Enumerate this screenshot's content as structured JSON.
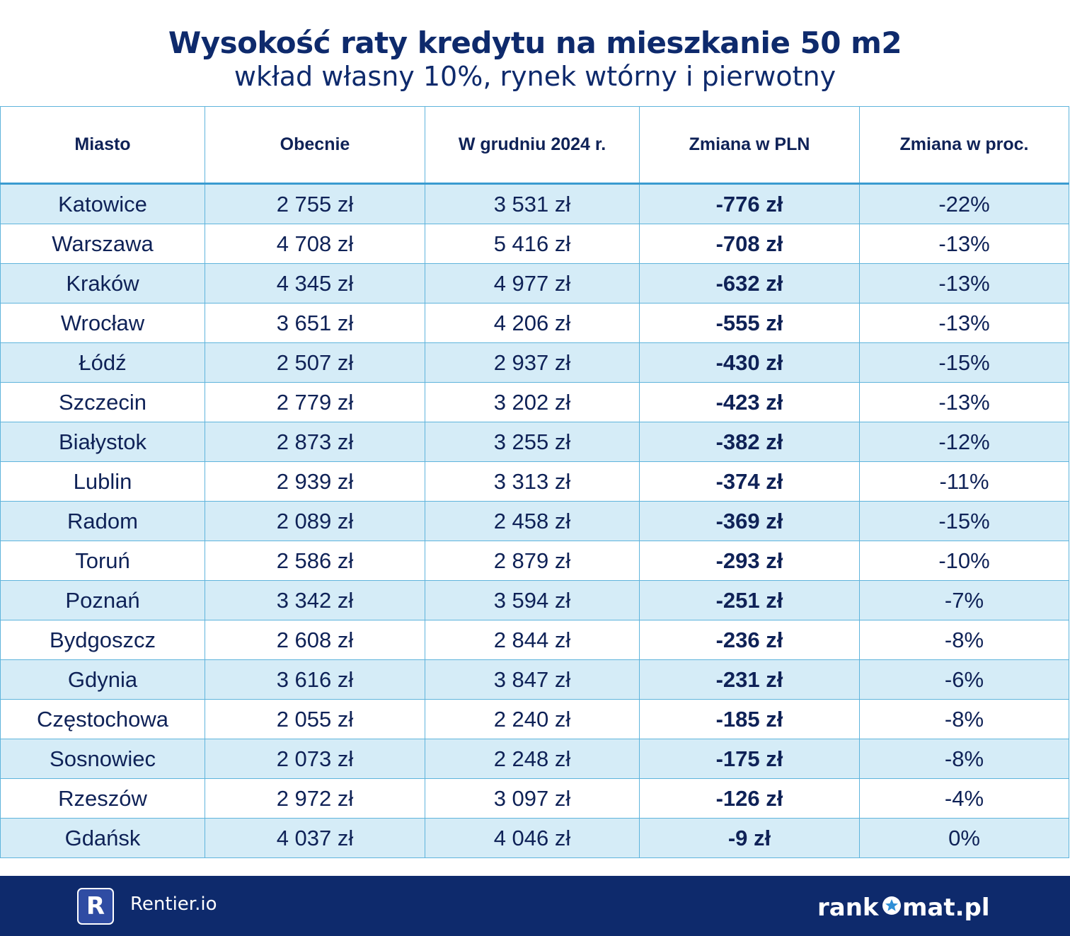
{
  "header": {
    "title": "Wysokość raty kredytu na mieszkanie 50 m2",
    "subtitle": "wkład własny 10%, rynek wtórny i pierwotny"
  },
  "chart_data": {
    "type": "table",
    "title": "Wysokość raty kredytu na mieszkanie 50 m2",
    "subtitle": "wkład własny 10%, rynek wtórny i pierwotny",
    "columns": [
      "Miasto",
      "Obecnie",
      "W grudniu 2024 r.",
      "Zmiana w PLN",
      "Zmiana w proc."
    ],
    "rows": [
      [
        "Katowice",
        "2 755 zł",
        "3 531 zł",
        "-776 zł",
        "-22%"
      ],
      [
        "Warszawa",
        "4 708 zł",
        "5 416 zł",
        "-708 zł",
        "-13%"
      ],
      [
        "Kraków",
        "4 345 zł",
        "4 977 zł",
        "-632 zł",
        "-13%"
      ],
      [
        "Wrocław",
        "3 651 zł",
        "4 206 zł",
        "-555 zł",
        "-13%"
      ],
      [
        "Łódź",
        "2 507 zł",
        "2 937 zł",
        "-430 zł",
        "-15%"
      ],
      [
        "Szczecin",
        "2 779 zł",
        "3 202 zł",
        "-423 zł",
        "-13%"
      ],
      [
        "Białystok",
        "2 873 zł",
        "3 255 zł",
        "-382 zł",
        "-12%"
      ],
      [
        "Lublin",
        "2 939 zł",
        "3 313 zł",
        "-374 zł",
        "-11%"
      ],
      [
        "Radom",
        "2 089 zł",
        "2 458 zł",
        "-369 zł",
        "-15%"
      ],
      [
        "Toruń",
        "2 586 zł",
        "2 879 zł",
        "-293 zł",
        "-10%"
      ],
      [
        "Poznań",
        "3 342 zł",
        "3 594 zł",
        "-251 zł",
        "-7%"
      ],
      [
        "Bydgoszcz",
        "2 608 zł",
        "2 844 zł",
        "-236 zł",
        "-8%"
      ],
      [
        "Gdynia",
        "3 616 zł",
        "3 847 zł",
        "-231 zł",
        "-6%"
      ],
      [
        "Częstochowa",
        "2 055 zł",
        "2 240 zł",
        "-185 zł",
        "-8%"
      ],
      [
        "Sosnowiec",
        "2 073 zł",
        "2 248 zł",
        "-175 zł",
        "-8%"
      ],
      [
        "Rzeszów",
        "2 972 zł",
        "3 097 zł",
        "-126 zł",
        "-4%"
      ],
      [
        "Gdańsk",
        "4 037 zł",
        "4 046 zł",
        "-9 zł",
        "0%"
      ]
    ],
    "bold_column": 3
  },
  "footer": {
    "rentier_badge": "R",
    "rentier_label": "Rentier.io",
    "rankomat_before": "rank",
    "rankomat_after": "mat.pl",
    "rankomat_icon": "star-o-icon"
  },
  "colors": {
    "title": "#0e2a6c",
    "row_alt": "#d5ecf7",
    "grid": "#5fb4dc",
    "footer": "#0e2a6c"
  }
}
